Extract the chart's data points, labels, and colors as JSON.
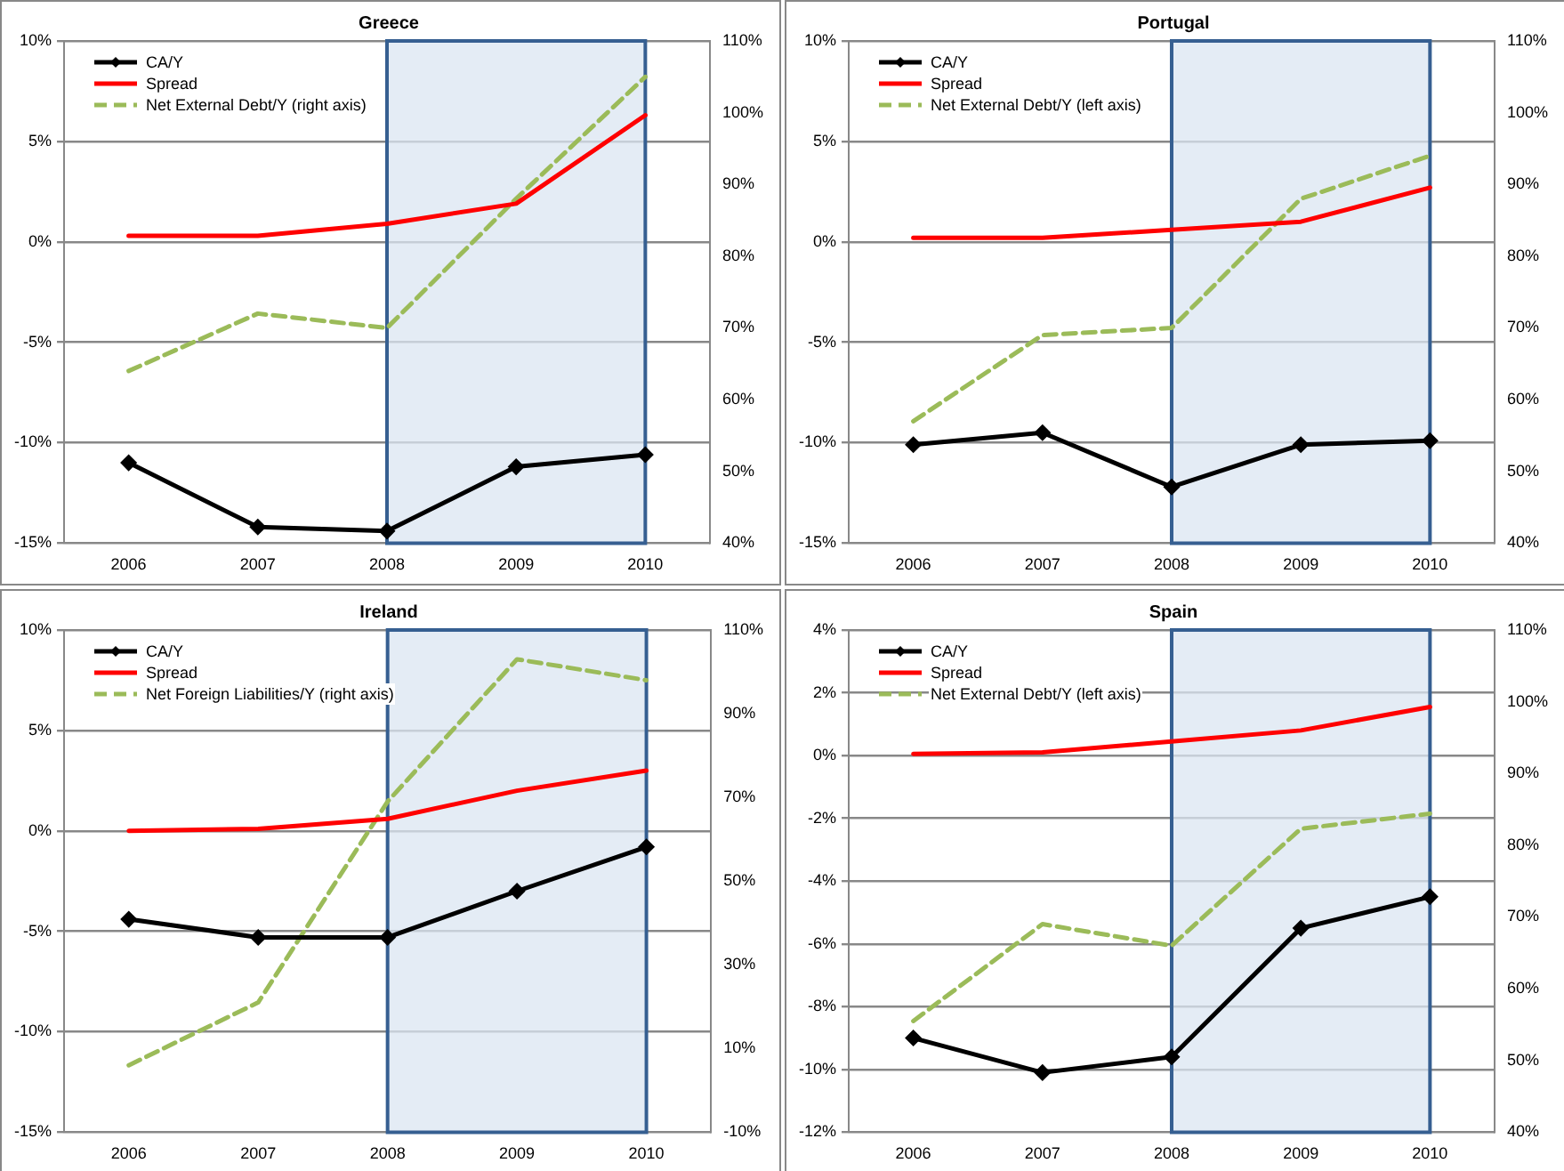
{
  "chart_data": [
    {
      "type": "line",
      "title": "Greece",
      "categories": [
        "2006",
        "2007",
        "2008",
        "2009",
        "2010"
      ],
      "series": [
        {
          "name": "CA/Y",
          "color": "#000000",
          "marker": "diamond",
          "values": [
            -11.0,
            -14.2,
            -14.4,
            -11.2,
            -10.6
          ]
        },
        {
          "name": "Spread",
          "color": "#ff0000",
          "marker": "none",
          "values": [
            0.3,
            0.3,
            0.9,
            1.9,
            6.3
          ]
        },
        {
          "name": "Net External Debt/Y (right axis)",
          "color": "#9bbb59",
          "marker": "none",
          "line_style": "dashed",
          "axis": "y2",
          "values": [
            64,
            72,
            70,
            88,
            105
          ]
        }
      ],
      "ylim": [
        -15,
        10
      ],
      "yticks": [
        {
          "value": -15,
          "label": "-15%"
        },
        {
          "value": -10,
          "label": "-10%"
        },
        {
          "value": -5,
          "label": "-5%"
        },
        {
          "value": 0,
          "label": "0%"
        },
        {
          "value": 5,
          "label": "5%"
        },
        {
          "value": 10,
          "label": "10%"
        }
      ],
      "y2lim": [
        40,
        110
      ],
      "y2ticks": [
        {
          "value": 40,
          "label": "40%"
        },
        {
          "value": 50,
          "label": "50%"
        },
        {
          "value": 60,
          "label": "60%"
        },
        {
          "value": 70,
          "label": "70%"
        },
        {
          "value": 80,
          "label": "80%"
        },
        {
          "value": 90,
          "label": "90%"
        },
        {
          "value": 100,
          "label": "100%"
        },
        {
          "value": 110,
          "label": "110%"
        }
      ],
      "bands": [
        {
          "axis": "x",
          "from": "2008",
          "to": "2010",
          "color": "#dbe5f1"
        }
      ],
      "grid": "y",
      "legend": "top left"
    },
    {
      "type": "line",
      "title": "Portugal",
      "categories": [
        "2006",
        "2007",
        "2008",
        "2009",
        "2010"
      ],
      "series": [
        {
          "name": "CA/Y",
          "color": "#000000",
          "marker": "diamond",
          "values": [
            -10.1,
            -9.5,
            -12.2,
            -10.1,
            -9.9
          ]
        },
        {
          "name": "Spread",
          "color": "#ff0000",
          "marker": "none",
          "values": [
            0.2,
            0.2,
            0.6,
            1.0,
            2.7
          ]
        },
        {
          "name": "Net External Debt/Y (left axis)",
          "color": "#9bbb59",
          "marker": "none",
          "line_style": "dashed",
          "axis": "y2",
          "values": [
            57,
            69,
            70,
            88,
            94
          ]
        }
      ],
      "ylim": [
        -15,
        10
      ],
      "yticks": [
        {
          "value": -15,
          "label": "-15%"
        },
        {
          "value": -10,
          "label": "-10%"
        },
        {
          "value": -5,
          "label": "-5%"
        },
        {
          "value": 0,
          "label": "0%"
        },
        {
          "value": 5,
          "label": "5%"
        },
        {
          "value": 10,
          "label": "10%"
        }
      ],
      "y2lim": [
        40,
        110
      ],
      "y2ticks": [
        {
          "value": 40,
          "label": "40%"
        },
        {
          "value": 50,
          "label": "50%"
        },
        {
          "value": 60,
          "label": "60%"
        },
        {
          "value": 70,
          "label": "70%"
        },
        {
          "value": 80,
          "label": "80%"
        },
        {
          "value": 90,
          "label": "90%"
        },
        {
          "value": 100,
          "label": "100%"
        },
        {
          "value": 110,
          "label": "110%"
        }
      ],
      "bands": [
        {
          "axis": "x",
          "from": "2008",
          "to": "2010",
          "color": "#dbe5f1"
        }
      ],
      "grid": "y",
      "legend": "top left"
    },
    {
      "type": "line",
      "title": "Ireland",
      "categories": [
        "2006",
        "2007",
        "2008",
        "2009",
        "2010"
      ],
      "series": [
        {
          "name": "CA/Y",
          "color": "#000000",
          "marker": "diamond",
          "values": [
            -4.4,
            -5.3,
            -5.3,
            -3.0,
            -0.8
          ]
        },
        {
          "name": "Spread",
          "color": "#ff0000",
          "marker": "none",
          "values": [
            0.0,
            0.1,
            0.6,
            2.0,
            3.0
          ]
        },
        {
          "name": "Net Foreign Liabilities/Y (right axis)",
          "color": "#9bbb59",
          "marker": "none",
          "line_style": "dashed",
          "axis": "y2",
          "values": [
            6,
            21,
            69,
            103,
            98
          ]
        }
      ],
      "ylim": [
        -15,
        10
      ],
      "yticks": [
        {
          "value": -15,
          "label": "-15%"
        },
        {
          "value": -10,
          "label": "-10%"
        },
        {
          "value": -5,
          "label": "-5%"
        },
        {
          "value": 0,
          "label": "0%"
        },
        {
          "value": 5,
          "label": "5%"
        },
        {
          "value": 10,
          "label": "10%"
        }
      ],
      "y2lim": [
        -10,
        110
      ],
      "y2ticks": [
        {
          "value": -10,
          "label": "-10%"
        },
        {
          "value": 10,
          "label": "10%"
        },
        {
          "value": 30,
          "label": "30%"
        },
        {
          "value": 50,
          "label": "50%"
        },
        {
          "value": 70,
          "label": "70%"
        },
        {
          "value": 90,
          "label": "90%"
        },
        {
          "value": 110,
          "label": "110%"
        }
      ],
      "bands": [
        {
          "axis": "x",
          "from": "2008",
          "to": "2010",
          "color": "#dbe5f1"
        }
      ],
      "grid": "y",
      "legend": "top left"
    },
    {
      "type": "line",
      "title": "Spain",
      "categories": [
        "2006",
        "2007",
        "2008",
        "2009",
        "2010"
      ],
      "series": [
        {
          "name": "CA/Y",
          "color": "#000000",
          "marker": "diamond",
          "values": [
            -9.0,
            -10.1,
            -9.6,
            -5.5,
            -4.5
          ]
        },
        {
          "name": "Spread",
          "color": "#ff0000",
          "marker": "none",
          "values": [
            0.05,
            0.1,
            0.45,
            0.8,
            1.55
          ]
        },
        {
          "name": "Net External Debt/Y (left axis)",
          "color": "#9bbb59",
          "marker": "none",
          "line_style": "dashed",
          "axis": "y2",
          "values": [
            55.5,
            69,
            66,
            82.3,
            84.4
          ]
        }
      ],
      "ylim": [
        -12,
        4
      ],
      "yticks": [
        {
          "value": -12,
          "label": "-12%"
        },
        {
          "value": -10,
          "label": "-10%"
        },
        {
          "value": -8,
          "label": "-8%"
        },
        {
          "value": -6,
          "label": "-6%"
        },
        {
          "value": -4,
          "label": "-4%"
        },
        {
          "value": -2,
          "label": "-2%"
        },
        {
          "value": 0,
          "label": "0%"
        },
        {
          "value": 2,
          "label": "2%"
        },
        {
          "value": 4,
          "label": "4%"
        }
      ],
      "y2lim": [
        40,
        110
      ],
      "y2ticks": [
        {
          "value": 40,
          "label": "40%"
        },
        {
          "value": 50,
          "label": "50%"
        },
        {
          "value": 60,
          "label": "60%"
        },
        {
          "value": 70,
          "label": "70%"
        },
        {
          "value": 80,
          "label": "80%"
        },
        {
          "value": 90,
          "label": "90%"
        },
        {
          "value": 100,
          "label": "100%"
        },
        {
          "value": 110,
          "label": "110%"
        }
      ],
      "bands": [
        {
          "axis": "x",
          "from": "2008",
          "to": "2010",
          "color": "#dbe5f1"
        }
      ],
      "grid": "y",
      "legend": "top left"
    }
  ]
}
